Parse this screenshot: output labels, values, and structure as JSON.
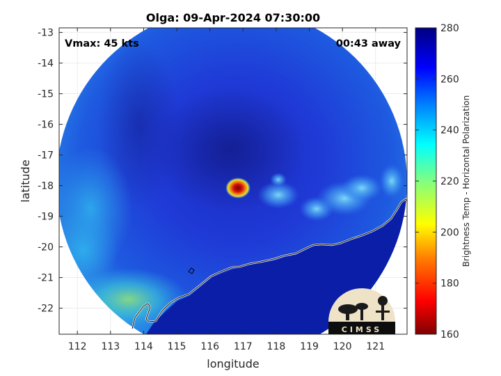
{
  "title": "Olga: 09-Apr-2024 07:30:00",
  "annotations": {
    "vmax": "Vmax: 45 kts",
    "time_away": "00:43 away"
  },
  "axes": {
    "xlabel": "longitude",
    "ylabel": "latitude",
    "xticks": [
      "112",
      "113",
      "114",
      "115",
      "116",
      "117",
      "118",
      "119",
      "120",
      "121"
    ],
    "yticks": [
      "-13",
      "-14",
      "-15",
      "-16",
      "-17",
      "-18",
      "-19",
      "-20",
      "-21",
      "-22"
    ],
    "xlim": [
      111.45,
      121.95
    ],
    "ylim": [
      -22.85,
      -12.85
    ]
  },
  "colorbar": {
    "label": "Brightness Temp - Horizontal Polarization",
    "ticks": [
      "280",
      "260",
      "240",
      "220",
      "200",
      "180",
      "160"
    ],
    "range": [
      160,
      280
    ]
  },
  "logo": {
    "text": "CIMSS"
  },
  "colors": {
    "deep_blue": "#1a2fd8",
    "dark_blue": "#0e1e9a",
    "cyan": "#29c3f0",
    "eye_red": "#c81414",
    "eye_yellow": "#f0d020"
  }
}
